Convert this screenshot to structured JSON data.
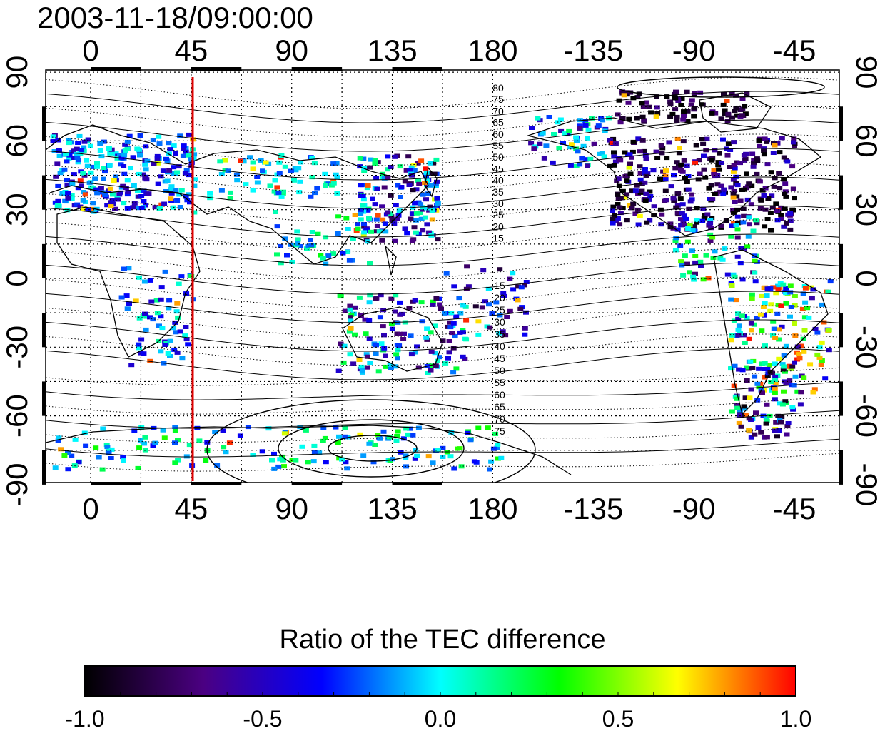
{
  "timestamp": "2003-11-18/09:00:00",
  "map": {
    "lon_ticks": [
      "0",
      "45",
      "90",
      "135",
      "180",
      "-135",
      "-90",
      "-45"
    ],
    "lat_ticks": [
      "90",
      "60",
      "30",
      "0",
      "-30",
      "-60",
      "-90"
    ],
    "marked_longitude": "45",
    "contour_labels_north": [
      "80",
      "75",
      "70",
      "65",
      "60",
      "55",
      "50",
      "45",
      "40",
      "35",
      "30",
      "25",
      "20",
      "15"
    ],
    "contour_labels_south": [
      "15",
      "20",
      "25",
      "30",
      "35",
      "40",
      "45",
      "50",
      "55",
      "60",
      "65",
      "70",
      "75"
    ]
  },
  "colorbar": {
    "title": "Ratio of the TEC difference",
    "tick_labels": [
      "-1.0",
      "-0.5",
      "0.0",
      "0.5",
      "1.0"
    ],
    "range": [
      -1.0,
      1.0
    ],
    "stops": [
      "#000000",
      "#4b0082",
      "#0000ff",
      "#00ffff",
      "#00ff00",
      "#ffff00",
      "#ff0000"
    ]
  },
  "colors": {
    "frame": "#000000",
    "marker_line": "#dd0000",
    "grid": "#000000"
  }
}
